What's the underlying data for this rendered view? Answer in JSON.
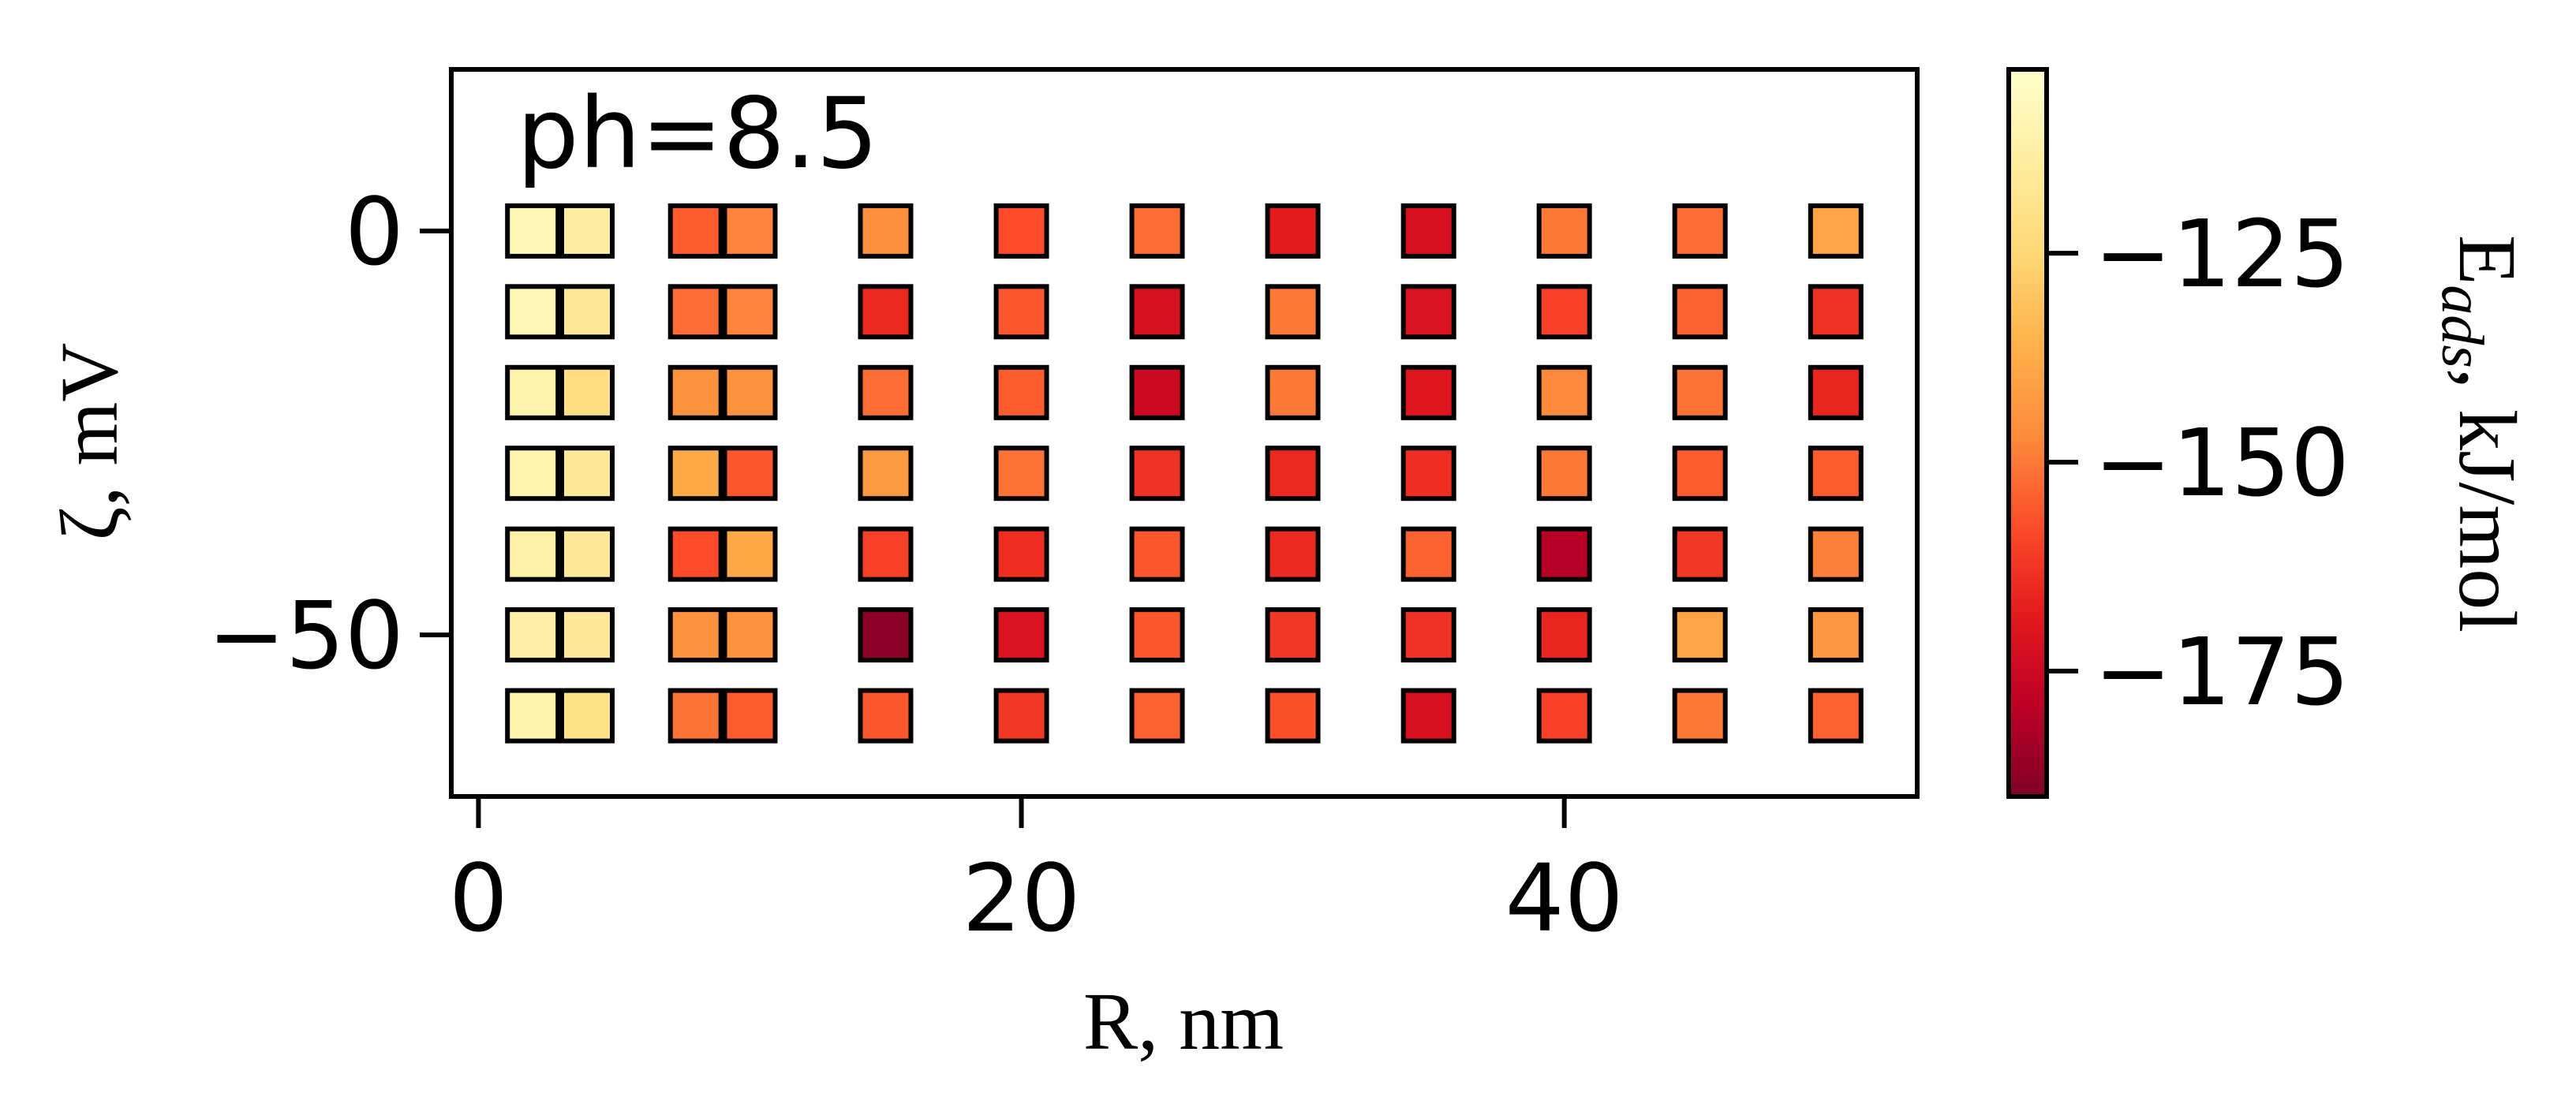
{
  "chart_data": {
    "type": "scatter",
    "marker": "square",
    "annotation": "ph=8.5",
    "xlabel": "R, nm",
    "ylabel": "ζ, mV",
    "xlim": [
      -1,
      53
    ],
    "ylim": [
      -70,
      20
    ],
    "xticks": [
      0,
      20,
      40
    ],
    "yticks": [
      0,
      -50
    ],
    "x_tick_labels": [
      "0",
      "20",
      "40"
    ],
    "y_tick_labels": [
      "0",
      "−50"
    ],
    "colorbar": {
      "label": "Eads, kJ/mol",
      "label_main": "E",
      "label_sub": "ads",
      "label_rest": ", kJ/mol",
      "colormap": "YlOrRd",
      "range": [
        -190,
        -103
      ],
      "ticks": [
        -125,
        -150,
        -175
      ],
      "tick_labels": [
        "−125",
        "−150",
        "−175"
      ]
    },
    "x": [
      2,
      4,
      8,
      10,
      15,
      20,
      25,
      30,
      35,
      40,
      45,
      50
    ],
    "y": [
      0,
      -10,
      -20,
      -30,
      -40,
      -50,
      -60
    ],
    "values": [
      [
        -108,
        -114,
        -155,
        -148,
        -146,
        -158,
        -152,
        -168,
        -172,
        -150,
        -152,
        -140
      ],
      [
        -109,
        -116,
        -152,
        -148,
        -165,
        -156,
        -172,
        -150,
        -171,
        -160,
        -154,
        -163
      ],
      [
        -111,
        -122,
        -145,
        -145,
        -152,
        -155,
        -175,
        -150,
        -170,
        -147,
        -151,
        -166
      ],
      [
        -110,
        -116,
        -138,
        -156,
        -143,
        -151,
        -163,
        -165,
        -164,
        -150,
        -155,
        -155
      ],
      [
        -112,
        -116,
        -158,
        -139,
        -160,
        -164,
        -156,
        -165,
        -154,
        -180,
        -162,
        -149
      ],
      [
        -113,
        -116,
        -145,
        -145,
        -188,
        -171,
        -156,
        -162,
        -163,
        -166,
        -140,
        -144
      ],
      [
        -111,
        -120,
        -151,
        -155,
        -156,
        -162,
        -154,
        -157,
        -172,
        -160,
        -150,
        -154
      ]
    ]
  }
}
